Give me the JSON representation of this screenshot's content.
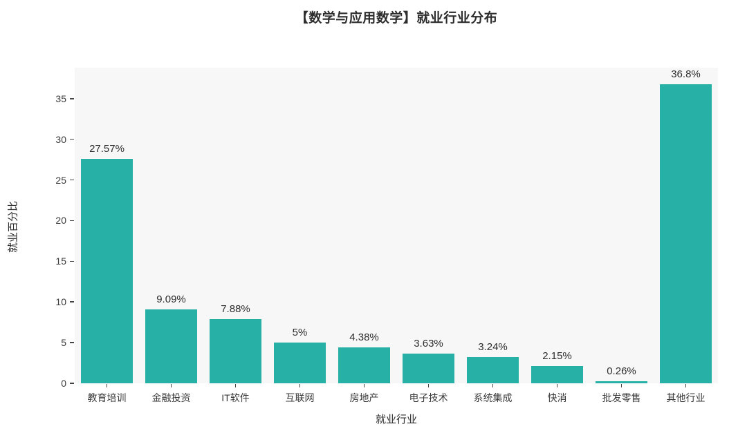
{
  "chart_data": {
    "type": "bar",
    "title": "【数学与应用数学】就业行业分布",
    "xlabel": "就业行业",
    "ylabel": "就业百分比",
    "categories": [
      "教育培训",
      "金融投资",
      "IT软件",
      "互联网",
      "房地产",
      "电子技术",
      "系统集成",
      "快消",
      "批发零售",
      "其他行业"
    ],
    "values": [
      27.57,
      9.09,
      7.88,
      5,
      4.38,
      3.63,
      3.24,
      2.15,
      0.26,
      36.8
    ],
    "value_labels": [
      "27.57%",
      "9.09%",
      "7.88%",
      "5%",
      "4.38%",
      "3.63%",
      "3.24%",
      "2.15%",
      "0.26%",
      "36.8%"
    ],
    "ylim": [
      0,
      38.8
    ],
    "yticks": [
      0,
      5,
      10,
      15,
      20,
      25,
      30,
      35
    ],
    "grid": false,
    "legend": "none",
    "colors": {
      "bar": "#27b0a6",
      "plot_bg": "#f7f7f8",
      "text": "#2d2d2d",
      "tick": "#444444"
    }
  }
}
